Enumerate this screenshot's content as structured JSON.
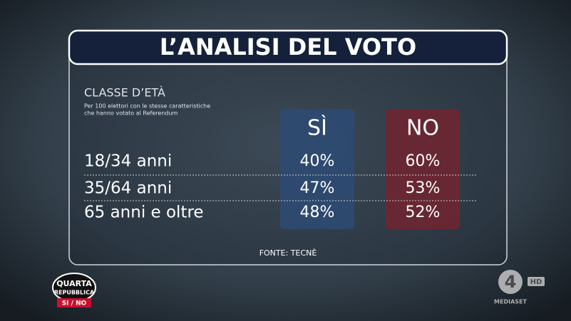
{
  "header": {
    "title": "L’ANALISI DEL VOTO"
  },
  "table": {
    "title": "CLASSE D’ETÀ",
    "note": [
      "Per 100 elettori con le stesse caratteristiche",
      "che hanno votato al Referendum"
    ],
    "columns": [
      "SÌ",
      "NO"
    ],
    "rows": [
      [
        "18/34 anni",
        "40%",
        "60%"
      ],
      [
        "35/64 anni",
        "47%",
        "53%"
      ],
      [
        "65 anni e oltre",
        "48%",
        "52%"
      ]
    ],
    "source": "FONTE: TECNÈ"
  },
  "logos": {
    "show": [
      "QUARTA",
      "REPUBBLICA"
    ],
    "tag": "SI / NO",
    "channel": "4",
    "quality": "HD",
    "network": "MEDIASET"
  }
}
